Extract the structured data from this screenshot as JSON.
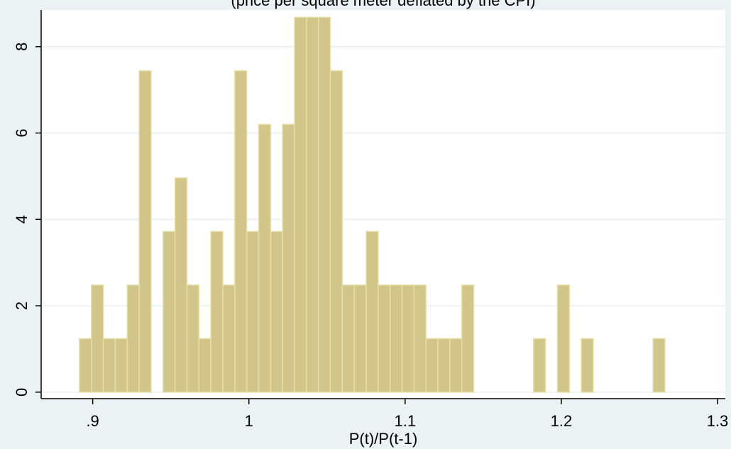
{
  "chart_data": {
    "type": "bar",
    "title": "(price per square meter deflated by the CPI)",
    "xlabel": "P(t)/P(t-1)",
    "ylabel": "",
    "xlim": [
      0.867,
      1.305
    ],
    "ylim": [
      -0.15,
      8.85
    ],
    "grid": true,
    "colors": {
      "background": "#eaf2f3",
      "plot_background": "#ffffff",
      "bar_fill": "#d1c58a",
      "bar_stroke": "#e6dfa8",
      "grid": "#eaf2f3",
      "axis": "#000000"
    },
    "x_ticks": [
      {
        "value": 0.9,
        "label": ".9"
      },
      {
        "value": 1.0,
        "label": "1"
      },
      {
        "value": 1.1,
        "label": "1.1"
      },
      {
        "value": 1.2,
        "label": "1.2"
      },
      {
        "value": 1.3,
        "label": "1.3"
      }
    ],
    "y_ticks": [
      {
        "value": 0,
        "label": "0"
      },
      {
        "value": 2,
        "label": "2"
      },
      {
        "value": 4,
        "label": "4"
      },
      {
        "value": 6,
        "label": "6"
      },
      {
        "value": 8,
        "label": "8"
      }
    ],
    "bin_start": 0.8915,
    "bin_width": 0.00765,
    "values": [
      1.24,
      2.48,
      1.24,
      1.24,
      2.48,
      7.44,
      0,
      3.72,
      4.96,
      2.48,
      1.24,
      3.72,
      2.48,
      7.44,
      3.72,
      6.2,
      3.72,
      6.2,
      8.68,
      8.68,
      8.68,
      7.44,
      2.48,
      2.48,
      3.72,
      2.48,
      2.48,
      2.48,
      2.48,
      1.24,
      1.24,
      1.24,
      2.48,
      0,
      0,
      0,
      0,
      0,
      1.24,
      0,
      2.48,
      0,
      1.24,
      0,
      0,
      0,
      0,
      0,
      1.24
    ]
  }
}
